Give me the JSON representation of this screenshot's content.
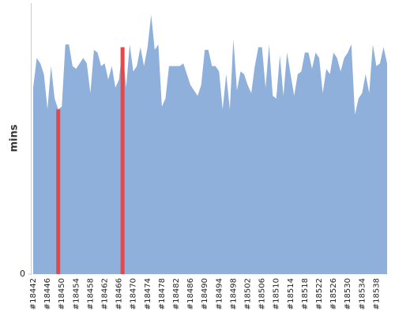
{
  "chart_data": {
    "type": "area",
    "y_label": "mins",
    "categories": [
      "#18442",
      null,
      null,
      null,
      "#18446",
      null,
      null,
      null,
      "#18450",
      null,
      null,
      null,
      "#18454",
      null,
      null,
      null,
      "#18458",
      null,
      null,
      null,
      "#18462",
      null,
      null,
      null,
      "#18466",
      null,
      null,
      null,
      "#18470",
      null,
      null,
      null,
      "#18474",
      null,
      null,
      null,
      "#18478",
      null,
      null,
      null,
      "#18482",
      null,
      null,
      null,
      "#18486",
      null,
      null,
      null,
      "#18490",
      null,
      null,
      null,
      "#18494",
      null,
      null,
      null,
      "#18498",
      null,
      null,
      null,
      "#18502",
      null,
      null,
      null,
      "#18506",
      null,
      null,
      null,
      "#18510",
      null,
      null,
      null,
      "#18514",
      null,
      null,
      null,
      "#18518",
      null,
      null,
      null,
      "#18522",
      null,
      null,
      null,
      "#18526",
      null,
      null,
      null,
      "#18530",
      null,
      null,
      null,
      "#18534",
      null,
      null,
      null,
      "#18538",
      null,
      null,
      null
    ],
    "values": [
      69,
      80,
      78,
      74,
      61,
      77,
      65,
      61,
      62,
      85,
      85,
      77,
      76,
      78,
      80,
      78,
      67,
      83,
      82,
      77,
      78,
      72,
      77,
      69,
      72,
      84,
      69,
      85,
      75,
      77,
      84,
      77,
      84,
      96,
      83,
      85,
      62,
      65,
      77,
      77,
      77,
      77,
      78,
      74,
      70,
      68,
      66,
      70,
      83,
      83,
      77,
      77,
      75,
      61,
      74,
      61,
      87,
      68,
      75,
      74,
      70,
      67,
      77,
      84,
      84,
      69,
      85,
      66,
      65,
      81,
      66,
      82,
      74,
      66,
      74,
      75,
      82,
      82,
      76,
      82,
      80,
      67,
      76,
      74,
      82,
      80,
      75,
      80,
      82,
      85,
      59,
      65,
      67,
      74,
      67,
      85,
      77,
      78,
      84,
      78
    ],
    "color": "#8fb0da",
    "highlight": [
      7,
      25
    ],
    "highlight_color": "#e8474a",
    "ylim": [
      0,
      100
    ],
    "yticks": [
      0
    ]
  }
}
